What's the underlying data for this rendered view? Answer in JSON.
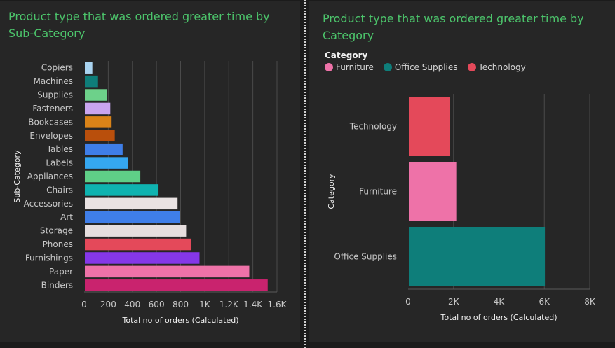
{
  "panels": {
    "left_title": "Product type that was ordered greater time by Sub-Category",
    "right_title": "Product type that was ordered greater time by Category"
  },
  "chart_data": [
    {
      "type": "bar",
      "orientation": "horizontal",
      "title": "Product type that was ordered greater time by Sub-Category",
      "xlabel": "Total no of orders (Calculated)",
      "ylabel": "Sub-Category",
      "xlim": [
        0,
        1600
      ],
      "xticks": [
        0,
        200,
        400,
        600,
        800,
        1000,
        1200,
        1400,
        1600
      ],
      "xtick_labels": [
        "0",
        "200",
        "400",
        "600",
        "800",
        "1K",
        "1.2K",
        "1.4K",
        "1.6K"
      ],
      "grid": true,
      "categories": [
        "Copiers",
        "Machines",
        "Supplies",
        "Fasteners",
        "Bookcases",
        "Envelopes",
        "Tables",
        "Labels",
        "Appliances",
        "Chairs",
        "Accessories",
        "Art",
        "Storage",
        "Phones",
        "Furnishings",
        "Paper",
        "Binders"
      ],
      "values": [
        68,
        115,
        190,
        217,
        228,
        254,
        319,
        364,
        466,
        617,
        775,
        796,
        846,
        889,
        957,
        1370,
        1523
      ],
      "colors": [
        "#a9d3f0",
        "#0e7e7a",
        "#6dd18a",
        "#c9a5ef",
        "#d98318",
        "#b94f0c",
        "#3f7ee8",
        "#35a7f0",
        "#5fcf87",
        "#0fb3b0",
        "#e9e2e2",
        "#3f7ee8",
        "#e6dede",
        "#e4495a",
        "#8537e8",
        "#ee72a8",
        "#c9236e"
      ]
    },
    {
      "type": "bar",
      "orientation": "horizontal",
      "title": "Product type that was ordered greater time by Category",
      "xlabel": "Total no of orders (Calculated)",
      "ylabel": "Category",
      "xlim": [
        0,
        8000
      ],
      "xticks": [
        0,
        2000,
        4000,
        6000,
        8000
      ],
      "xtick_labels": [
        "0",
        "2K",
        "4K",
        "6K",
        "8K"
      ],
      "grid": true,
      "legend_title": "Category",
      "legend_placement": "top-left",
      "legend": [
        {
          "name": "Furniture",
          "color": "#ee72a8"
        },
        {
          "name": "Office Supplies",
          "color": "#0e7e7a"
        },
        {
          "name": "Technology",
          "color": "#e4495a"
        }
      ],
      "categories": [
        "Technology",
        "Furniture",
        "Office Supplies"
      ],
      "values": [
        1847,
        2121,
        6026
      ],
      "colors": [
        "#e4495a",
        "#ee72a8",
        "#0e7e7a"
      ]
    }
  ]
}
